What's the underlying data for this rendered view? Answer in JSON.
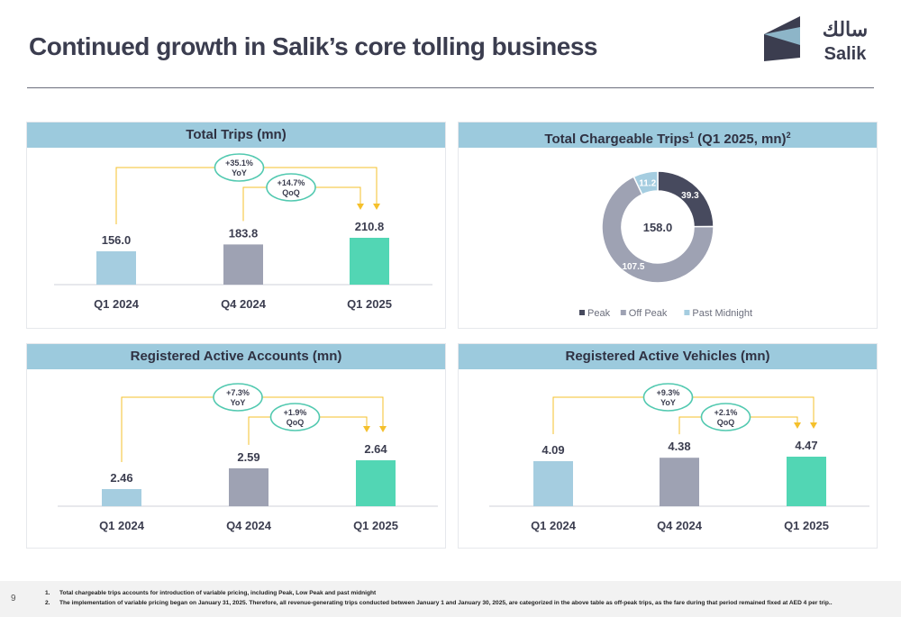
{
  "title": "Continued growth in Salik’s core tolling business",
  "logo": {
    "arabic": "سالك",
    "latin": "Salik"
  },
  "colors": {
    "q1_2024": "#a5cde0",
    "q4_2024": "#9ea2b3",
    "q1_2025": "#52d6b4",
    "connector": "#f5c02b",
    "header": "#9ccadd",
    "peak": "#474a5e",
    "off_peak": "#9ea2b3",
    "past_midnight": "#a5cde0"
  },
  "panels": {
    "total_trips": {
      "title": "Total Trips (mn)",
      "yoy": {
        "value": "+35.1%",
        "label": "YoY"
      },
      "qoq": {
        "value": "+14.7%",
        "label": "QoQ"
      },
      "chart_data": {
        "type": "bar",
        "categories": [
          "Q1 2024",
          "Q4 2024",
          "Q1 2025"
        ],
        "values": [
          156.0,
          183.8,
          210.8
        ],
        "labels": [
          "156.0",
          "183.8",
          "210.8"
        ]
      }
    },
    "chargeable_trips": {
      "title_main": "Total Chargeable Trips",
      "title_sup1": "1",
      "title_rest": " (Q1 2025, mn)",
      "title_sup2": "2",
      "total": "158.0",
      "chart_data": {
        "type": "pie",
        "categories": [
          "Peak",
          "Off Peak",
          "Past Midnight"
        ],
        "values": [
          39.3,
          107.5,
          11.2
        ],
        "labels": [
          "39.3",
          "107.5",
          "11.2"
        ],
        "legend_position": "bottom"
      }
    },
    "accounts": {
      "title": "Registered Active Accounts (mn)",
      "yoy": {
        "value": "+7.3%",
        "label": "YoY"
      },
      "qoq": {
        "value": "+1.9%",
        "label": "QoQ"
      },
      "chart_data": {
        "type": "bar",
        "categories": [
          "Q1 2024",
          "Q4 2024",
          "Q1 2025"
        ],
        "values": [
          2.46,
          2.59,
          2.64
        ],
        "labels": [
          "2.46",
          "2.59",
          "2.64"
        ]
      }
    },
    "vehicles": {
      "title": "Registered Active Vehicles (mn)",
      "yoy": {
        "value": "+9.3%",
        "label": "YoY"
      },
      "qoq": {
        "value": "+2.1%",
        "label": "QoQ"
      },
      "chart_data": {
        "type": "bar",
        "categories": [
          "Q1 2024",
          "Q4 2024",
          "Q1 2025"
        ],
        "values": [
          4.09,
          4.38,
          4.47
        ],
        "labels": [
          "4.09",
          "4.38",
          "4.47"
        ]
      }
    }
  },
  "footer": {
    "page": "9",
    "notes": [
      {
        "num": "1.",
        "text": "Total chargeable trips accounts for introduction of variable pricing, including Peak, Low Peak and past midnight"
      },
      {
        "num": "2.",
        "text": "The implementation of variable pricing began on January 31, 2025. Therefore, all revenue-generating trips conducted between January 1 and January 30, 2025, are categorized in the above table as off-peak trips, as the fare during that period remained fixed at AED 4 per trip.."
      }
    ]
  }
}
